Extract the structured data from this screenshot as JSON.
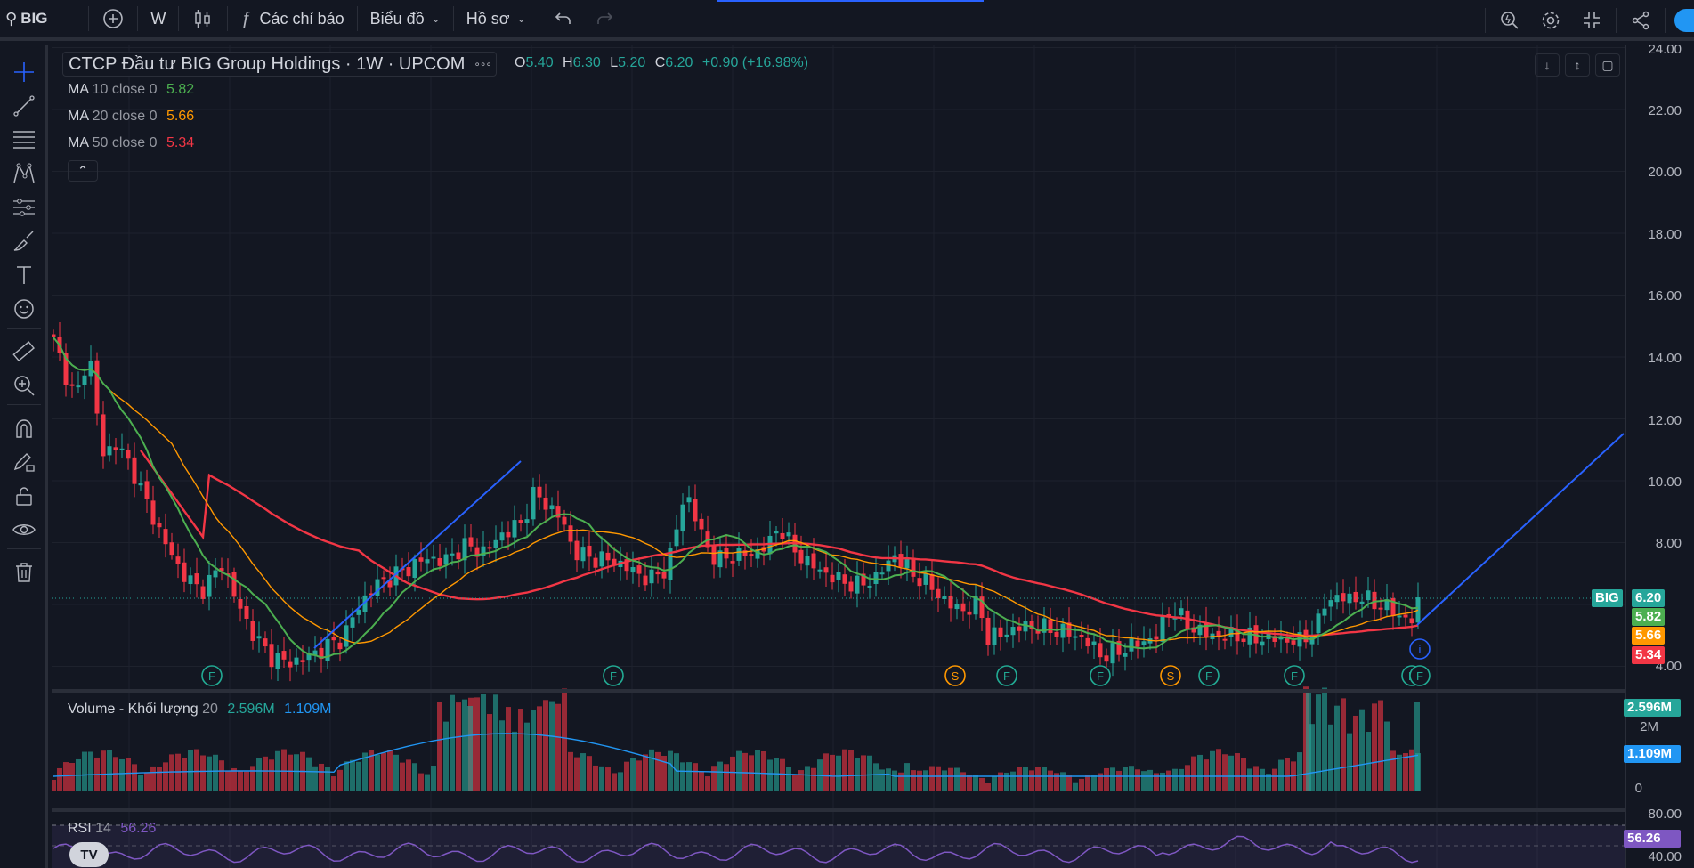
{
  "topbar": {
    "symbol": "BIG",
    "interval": "W",
    "indicators_label": "Các chỉ báo",
    "chart_type_label": "Biểu đồ",
    "profile_label": "Hồ sơ"
  },
  "legend": {
    "title": "CTCP Đầu tư BIG Group Holdings · 1W · UPCOM",
    "more": "∘∘∘",
    "open_key": "O",
    "open": "5.40",
    "high_key": "H",
    "high": "6.30",
    "low_key": "L",
    "low": "5.20",
    "close_key": "C",
    "close": "6.20",
    "change": "+0.90 (+16.98%)",
    "ma": [
      {
        "name": "MA",
        "params": "10 close 0",
        "value": "5.82",
        "color": "#4caf50"
      },
      {
        "name": "MA",
        "params": "20 close 0",
        "value": "5.66",
        "color": "#ff9800"
      },
      {
        "name": "MA",
        "params": "50 close 0",
        "value": "5.34",
        "color": "#f23645"
      }
    ]
  },
  "price_scale": {
    "labels": [
      "24.00",
      "22.00",
      "20.00",
      "18.00",
      "16.00",
      "14.00",
      "12.00",
      "10.00",
      "8.00",
      "6.00",
      "4.00"
    ],
    "tags": [
      {
        "symbol": "BIG",
        "value": "6.20",
        "color": "#26a69a"
      },
      {
        "value": "5.82",
        "color": "#4caf50"
      },
      {
        "value": "5.66",
        "color": "#ff9800"
      },
      {
        "value": "5.34",
        "color": "#f23645"
      }
    ]
  },
  "volume": {
    "title": "Volume - Khối lượng",
    "param": "20",
    "value": "2.596M",
    "ma_value": "1.109M",
    "scale": [
      "2M",
      "0"
    ]
  },
  "rsi": {
    "title": "RSI",
    "param": "14",
    "value": "56.26",
    "scale": [
      "80.00",
      "40.00"
    ]
  },
  "events": [
    "F",
    "F",
    "S",
    "F",
    "F",
    "S",
    "F",
    "F",
    "F",
    "F"
  ],
  "colors": {
    "up": "#26a69a",
    "down": "#f23645",
    "ma10": "#4caf50",
    "ma20": "#ff9800",
    "ma50": "#f23645",
    "trendline": "#2962ff",
    "rsi": "#7e57c2",
    "background": "#131722"
  }
}
